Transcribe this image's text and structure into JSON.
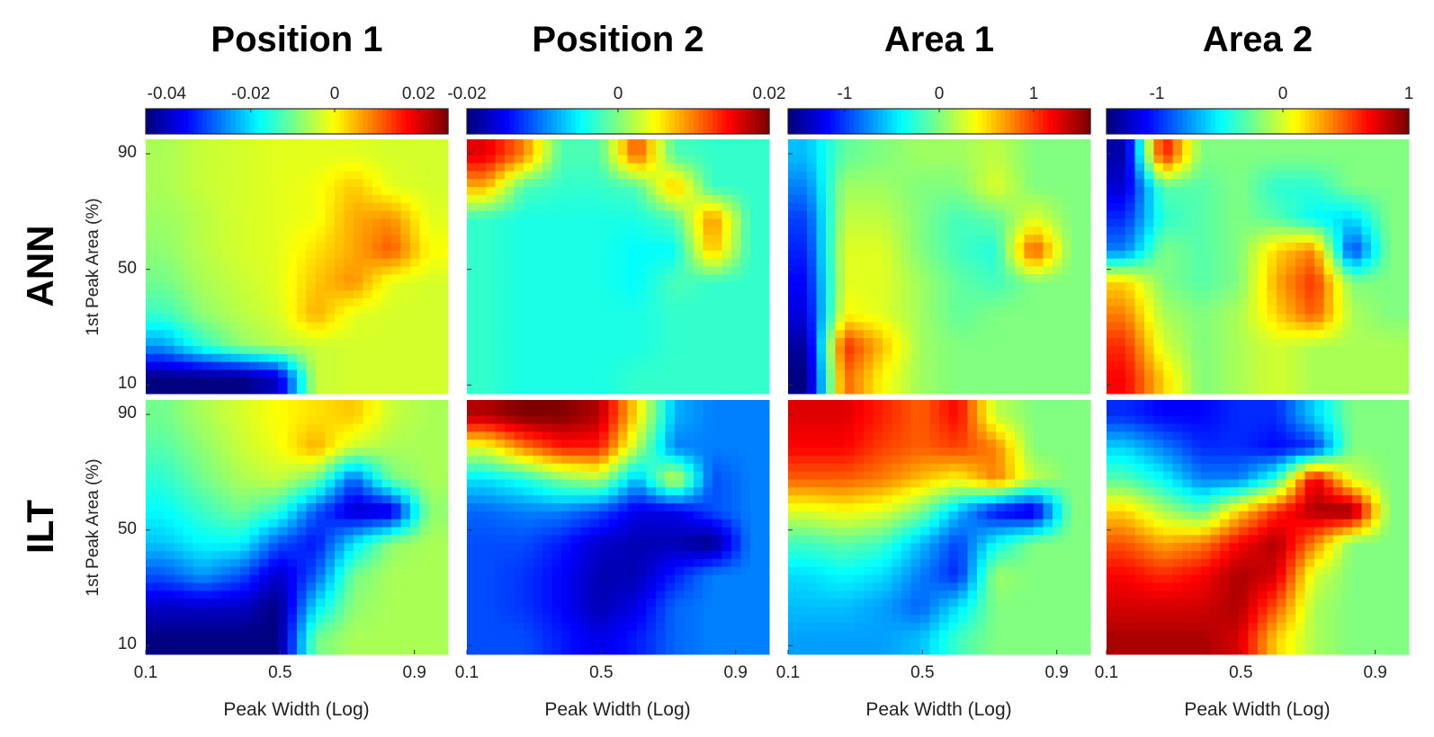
{
  "chart_data": {
    "type": "heatmap",
    "colormap": "jet",
    "columns": [
      {
        "title": "Position 1",
        "clim": [
          -0.045,
          0.027
        ],
        "cticks": [
          {
            "v": -0.04,
            "label": "-0.04"
          },
          {
            "v": -0.02,
            "label": "-0.02"
          },
          {
            "v": 0,
            "label": "0"
          },
          {
            "v": 0.02,
            "label": "0.02"
          }
        ]
      },
      {
        "title": "Position 2",
        "clim": [
          -0.02,
          0.02
        ],
        "cticks": [
          {
            "v": -0.02,
            "label": "-0.02"
          },
          {
            "v": 0,
            "label": "0"
          },
          {
            "v": 0.02,
            "label": "0.02"
          }
        ]
      },
      {
        "title": "Area 1",
        "clim": [
          -1.6,
          1.6
        ],
        "cticks": [
          {
            "v": -1,
            "label": "-1"
          },
          {
            "v": 0,
            "label": "0"
          },
          {
            "v": 1,
            "label": "1"
          }
        ]
      },
      {
        "title": "Area 2",
        "clim": [
          -1.4,
          1.0
        ],
        "cticks": [
          {
            "v": -1,
            "label": "-1"
          },
          {
            "v": 0,
            "label": "0"
          },
          {
            "v": 1,
            "label": "1"
          }
        ]
      }
    ],
    "rows": [
      {
        "label": "ANN"
      },
      {
        "label": "ILT"
      }
    ],
    "xlabel": "Peak Width (Log)",
    "ylabel": "1st Peak Area (%)",
    "xlim": [
      0.1,
      1.0
    ],
    "ylim": [
      7,
      95
    ],
    "xticks": [
      {
        "v": 0.1,
        "label": "0.1"
      },
      {
        "v": 0.5,
        "label": "0.5"
      },
      {
        "v": 0.9,
        "label": "0.9"
      }
    ],
    "yticks": [
      {
        "v": 90,
        "label": "90"
      },
      {
        "v": 50,
        "label": "50"
      },
      {
        "v": 10,
        "label": "10"
      }
    ],
    "grid_note": "values: rows from top (high area) to bottom, cols left to right (approximate, 8x8 coarse)",
    "panels": [
      [
        [
          [
            -0.006,
            -0.004,
            -0.003,
            -0.002,
            -0.002,
            -0.002,
            -0.003,
            -0.003
          ],
          [
            -0.006,
            -0.004,
            -0.003,
            -0.002,
            -0.001,
            0.004,
            -0.002,
            -0.003
          ],
          [
            -0.007,
            -0.005,
            -0.003,
            -0.002,
            -0.001,
            0.006,
            0.008,
            -0.002
          ],
          [
            -0.008,
            -0.005,
            -0.003,
            -0.002,
            0.002,
            0.006,
            0.012,
            0.0
          ],
          [
            -0.01,
            -0.006,
            -0.004,
            -0.002,
            0.004,
            0.008,
            -0.002,
            -0.003
          ],
          [
            -0.014,
            -0.008,
            -0.005,
            -0.003,
            0.006,
            -0.002,
            -0.003,
            -0.003
          ],
          [
            -0.025,
            -0.015,
            -0.008,
            -0.005,
            -0.004,
            -0.003,
            -0.003,
            -0.003
          ],
          [
            -0.045,
            -0.045,
            -0.045,
            -0.04,
            -0.004,
            -0.003,
            -0.003,
            -0.003
          ]
        ],
        [
          [
            0.016,
            0.01,
            -0.002,
            -0.002,
            0.012,
            -0.002,
            -0.003,
            -0.003
          ],
          [
            0.008,
            -0.002,
            -0.003,
            -0.003,
            -0.002,
            0.008,
            -0.003,
            -0.003
          ],
          [
            -0.003,
            -0.004,
            -0.004,
            -0.004,
            -0.004,
            -0.002,
            0.01,
            -0.003
          ],
          [
            -0.003,
            -0.004,
            -0.004,
            -0.004,
            -0.005,
            -0.005,
            0.008,
            -0.003
          ],
          [
            -0.003,
            -0.004,
            -0.004,
            -0.004,
            -0.005,
            -0.002,
            -0.003,
            -0.003
          ],
          [
            -0.003,
            -0.004,
            -0.004,
            -0.004,
            -0.004,
            -0.003,
            -0.003,
            -0.003
          ],
          [
            -0.003,
            -0.004,
            -0.004,
            -0.004,
            -0.004,
            -0.003,
            -0.003,
            -0.003
          ],
          [
            -0.003,
            -0.004,
            -0.004,
            -0.004,
            -0.003,
            -0.003,
            -0.003,
            -0.003
          ]
        ],
        [
          [
            -0.6,
            -0.1,
            0.0,
            0.1,
            0.1,
            0.2,
            0.0,
            0.0
          ],
          [
            -0.8,
            0.1,
            0.1,
            0.0,
            0.0,
            0.3,
            0.0,
            0.0
          ],
          [
            -1.0,
            0.2,
            0.2,
            0.0,
            -0.2,
            -0.1,
            0.3,
            0.0
          ],
          [
            -1.1,
            0.3,
            0.3,
            0.0,
            -0.2,
            -0.3,
            1.0,
            0.0
          ],
          [
            -1.2,
            0.3,
            0.3,
            0.1,
            -0.1,
            -0.2,
            0.0,
            0.0
          ],
          [
            -1.3,
            0.4,
            0.3,
            0.1,
            -0.1,
            0.0,
            0.0,
            0.0
          ],
          [
            -1.5,
            1.1,
            0.6,
            0.1,
            0.0,
            0.0,
            0.0,
            0.0
          ],
          [
            -1.6,
            0.9,
            0.4,
            0.1,
            0.0,
            0.0,
            0.0,
            0.0
          ]
        ],
        [
          [
            -1.3,
            0.7,
            -0.2,
            -0.2,
            -0.2,
            -0.2,
            -0.2,
            -0.2
          ],
          [
            -1.2,
            -0.3,
            -0.3,
            -0.2,
            -0.4,
            -0.4,
            -0.2,
            -0.2
          ],
          [
            -1.0,
            -0.4,
            -0.3,
            -0.2,
            -0.3,
            -0.5,
            -0.6,
            -0.2
          ],
          [
            -0.8,
            -0.2,
            -0.3,
            -0.2,
            0.2,
            0.4,
            -1.0,
            -0.2
          ],
          [
            0.2,
            -0.2,
            -0.3,
            -0.2,
            0.3,
            0.6,
            -0.2,
            -0.2
          ],
          [
            0.4,
            -0.1,
            -0.2,
            -0.1,
            0.2,
            0.5,
            -0.1,
            -0.2
          ],
          [
            0.6,
            0.0,
            -0.2,
            -0.1,
            0.0,
            -0.1,
            -0.1,
            -0.1
          ],
          [
            0.7,
            0.2,
            -0.2,
            -0.1,
            0.0,
            -0.1,
            -0.1,
            -0.1
          ]
        ]
      ],
      [
        [
          [
            -0.01,
            -0.006,
            -0.003,
            0.0,
            0.002,
            0.004,
            -0.004,
            -0.006
          ],
          [
            -0.012,
            -0.008,
            -0.004,
            -0.001,
            0.006,
            -0.004,
            -0.006,
            -0.006
          ],
          [
            -0.015,
            -0.01,
            -0.006,
            -0.004,
            -0.01,
            -0.03,
            -0.01,
            -0.006
          ],
          [
            -0.018,
            -0.014,
            -0.01,
            -0.015,
            -0.03,
            -0.04,
            -0.04,
            -0.008
          ],
          [
            -0.022,
            -0.018,
            -0.018,
            -0.03,
            -0.035,
            -0.02,
            -0.008,
            -0.006
          ],
          [
            -0.03,
            -0.025,
            -0.03,
            -0.04,
            -0.03,
            -0.01,
            -0.006,
            -0.006
          ],
          [
            -0.04,
            -0.04,
            -0.04,
            -0.045,
            -0.02,
            -0.008,
            -0.006,
            -0.006
          ],
          [
            -0.045,
            -0.045,
            -0.045,
            -0.045,
            -0.01,
            -0.006,
            -0.006,
            -0.006
          ]
        ],
        [
          [
            0.018,
            0.02,
            0.02,
            0.018,
            0.006,
            -0.008,
            -0.01,
            -0.01
          ],
          [
            0.004,
            0.01,
            0.014,
            0.014,
            0.002,
            -0.01,
            -0.01,
            -0.01
          ],
          [
            -0.006,
            -0.004,
            0.0,
            0.002,
            -0.008,
            0.004,
            -0.012,
            -0.01
          ],
          [
            -0.011,
            -0.01,
            -0.01,
            -0.012,
            -0.016,
            -0.016,
            -0.012,
            -0.01
          ],
          [
            -0.012,
            -0.012,
            -0.014,
            -0.017,
            -0.018,
            -0.018,
            -0.02,
            -0.01
          ],
          [
            -0.012,
            -0.013,
            -0.015,
            -0.018,
            -0.018,
            -0.014,
            -0.01,
            -0.01
          ],
          [
            -0.012,
            -0.013,
            -0.015,
            -0.018,
            -0.016,
            -0.011,
            -0.01,
            -0.01
          ],
          [
            -0.012,
            -0.012,
            -0.014,
            -0.016,
            -0.014,
            -0.011,
            -0.01,
            -0.01
          ]
        ],
        [
          [
            1.3,
            1.3,
            1.1,
            0.9,
            1.2,
            0.2,
            0.0,
            0.0
          ],
          [
            1.2,
            1.2,
            1.0,
            0.9,
            1.0,
            0.8,
            0.0,
            0.0
          ],
          [
            0.9,
            0.9,
            0.8,
            0.6,
            0.4,
            0.8,
            0.2,
            0.0
          ],
          [
            0.3,
            0.4,
            0.3,
            0.0,
            -0.6,
            -1.2,
            -1.4,
            0.0
          ],
          [
            -0.2,
            -0.1,
            -0.2,
            -0.6,
            -1.0,
            -0.4,
            0.0,
            0.0
          ],
          [
            -0.5,
            -0.4,
            -0.5,
            -0.8,
            -1.1,
            0.1,
            0.0,
            0.0
          ],
          [
            -0.6,
            -0.6,
            -0.7,
            -0.9,
            -0.5,
            0.0,
            0.0,
            0.0
          ],
          [
            -0.7,
            -0.7,
            -0.7,
            -0.6,
            -0.2,
            0.0,
            0.0,
            0.0
          ]
        ],
        [
          [
            -1.0,
            -1.1,
            -1.1,
            -1.0,
            -1.0,
            -0.6,
            -0.2,
            -0.2
          ],
          [
            -0.6,
            -0.8,
            -1.0,
            -1.0,
            -1.1,
            -1.0,
            -0.2,
            -0.2
          ],
          [
            -0.3,
            -0.5,
            -0.8,
            -0.8,
            -0.4,
            0.8,
            0.0,
            -0.2
          ],
          [
            0.2,
            -0.1,
            -0.3,
            0.2,
            0.6,
            0.9,
            1.0,
            -0.2
          ],
          [
            0.5,
            0.3,
            0.4,
            0.7,
            0.9,
            0.4,
            -0.2,
            -0.2
          ],
          [
            0.7,
            0.6,
            0.7,
            0.9,
            0.8,
            0.0,
            -0.2,
            -0.2
          ],
          [
            0.8,
            0.8,
            0.8,
            0.9,
            0.5,
            -0.1,
            -0.2,
            -0.2
          ],
          [
            0.9,
            0.9,
            0.9,
            0.8,
            0.2,
            -0.1,
            -0.2,
            -0.2
          ]
        ]
      ]
    ]
  }
}
